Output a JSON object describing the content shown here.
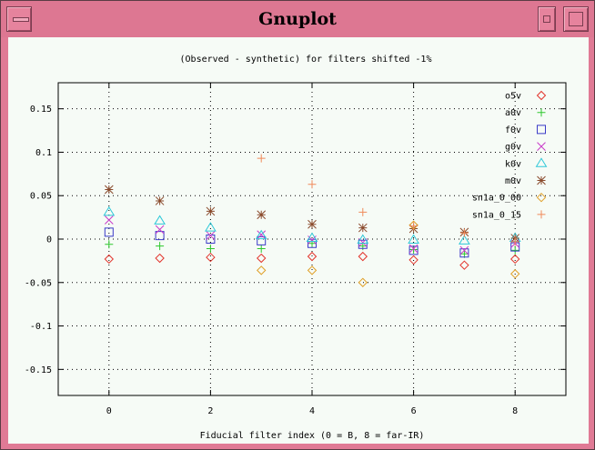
{
  "window": {
    "title": "Gnuplot"
  },
  "chart_data": {
    "type": "scatter",
    "title": "(Observed - synthetic) for filters shifted -1%",
    "xlabel": "Fiducial filter index (0 = B, 8 = far-IR)",
    "ylabel": "",
    "xlim": [
      -1,
      9
    ],
    "ylim": [
      -0.18,
      0.18
    ],
    "x_ticks": [
      "0",
      "2",
      "4",
      "6",
      "8"
    ],
    "y_ticks": [
      "0.15",
      "0.1",
      "0.05",
      "0",
      "-0.05",
      "-0.1",
      "-0.15"
    ],
    "grid": true,
    "legend_position": "top-right",
    "series": [
      {
        "name": "o5v",
        "marker": "diamond",
        "color": "#e2342c",
        "x": [
          0,
          1,
          2,
          3,
          4,
          5,
          6,
          7,
          8
        ],
        "y": [
          -0.023,
          -0.022,
          -0.021,
          -0.022,
          -0.02,
          -0.02,
          -0.024,
          -0.03,
          -0.023
        ]
      },
      {
        "name": "a0v",
        "marker": "plus",
        "color": "#2ec82e",
        "x": [
          0,
          1,
          2,
          3,
          4,
          5,
          6,
          7,
          8
        ],
        "y": [
          -0.006,
          -0.008,
          -0.011,
          -0.011,
          -0.005,
          -0.008,
          -0.012,
          -0.017,
          -0.013
        ]
      },
      {
        "name": "f0v",
        "marker": "square",
        "color": "#3a3ac8",
        "x": [
          0,
          1,
          2,
          3,
          4,
          5,
          6,
          7,
          8
        ],
        "y": [
          0.008,
          0.004,
          0.0,
          -0.002,
          -0.005,
          -0.006,
          -0.013,
          -0.016,
          -0.009
        ]
      },
      {
        "name": "g0v",
        "marker": "cross",
        "color": "#c83ac8",
        "x": [
          0,
          1,
          2,
          3,
          4,
          5,
          6,
          7,
          8
        ],
        "y": [
          0.022,
          0.011,
          0.004,
          0.005,
          -0.001,
          -0.004,
          -0.011,
          -0.013,
          -0.005
        ]
      },
      {
        "name": "k0v",
        "marker": "triangle",
        "color": "#2ec8d8",
        "x": [
          0,
          1,
          2,
          3,
          4,
          5,
          6,
          7,
          8
        ],
        "y": [
          0.031,
          0.021,
          0.013,
          0.004,
          0.001,
          -0.001,
          -0.001,
          -0.002,
          0.001
        ]
      },
      {
        "name": "m0v",
        "marker": "star",
        "color": "#8a4a2c",
        "x": [
          0,
          1,
          2,
          3,
          4,
          5,
          6,
          7,
          8
        ],
        "y": [
          0.057,
          0.044,
          0.032,
          0.028,
          0.017,
          0.013,
          0.012,
          0.008,
          0.001
        ]
      },
      {
        "name": "sn1a_0_00",
        "marker": "diamond",
        "color": "#e0a028",
        "x": [
          3,
          4,
          5,
          6,
          8
        ],
        "y": [
          -0.036,
          -0.036,
          -0.05,
          0.016,
          -0.04
        ]
      },
      {
        "name": "sn1a_0_15",
        "marker": "plus",
        "color": "#f08a5a",
        "x": [
          3,
          4,
          5,
          6,
          7,
          8
        ],
        "y": [
          0.093,
          0.063,
          0.031,
          0.015,
          0.007,
          -0.003
        ]
      }
    ]
  }
}
